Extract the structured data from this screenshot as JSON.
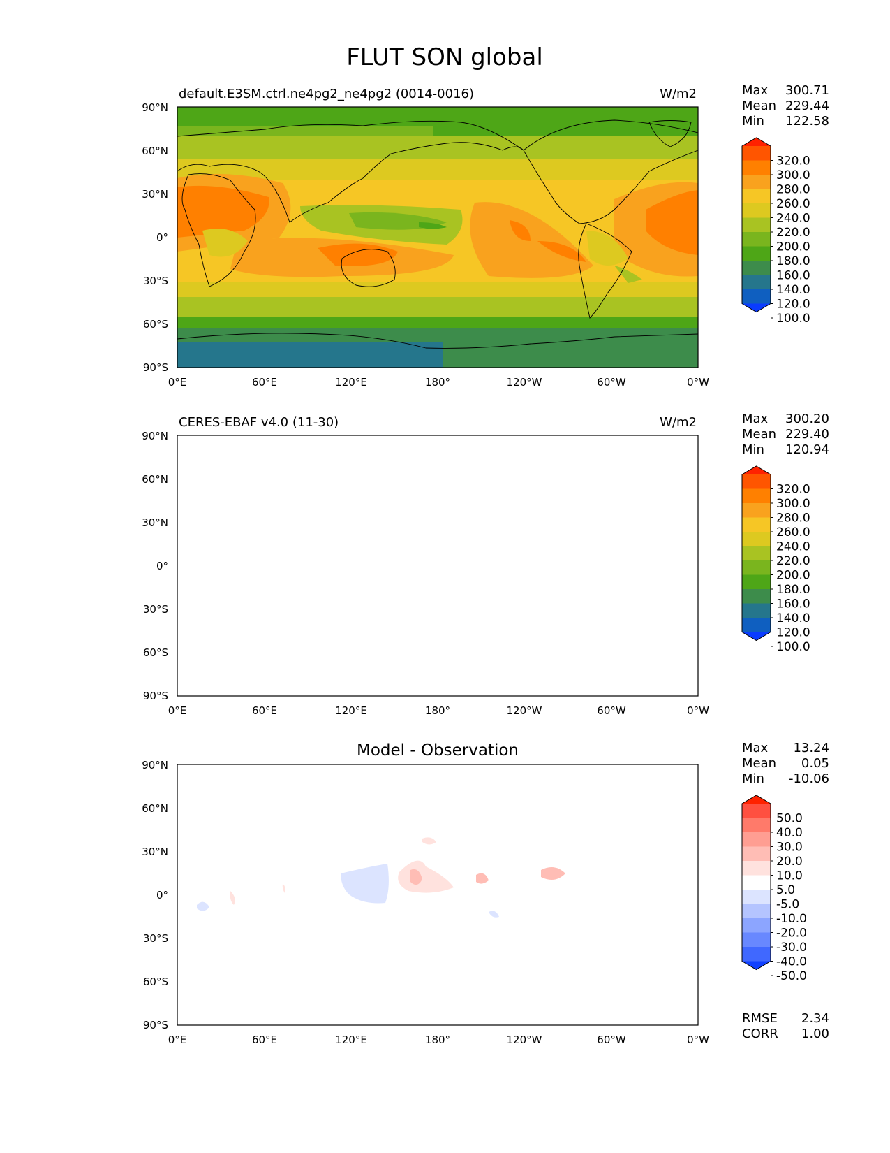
{
  "title": "FLUT SON global",
  "x_ticks": [
    "0°E",
    "60°E",
    "120°E",
    "180°",
    "120°W",
    "60°W",
    "0°W"
  ],
  "y_ticks": [
    "90°N",
    "60°N",
    "30°N",
    "0°",
    "30°S",
    "60°S",
    "90°S"
  ],
  "stat_labels": {
    "max": "Max",
    "mean": "Mean",
    "min": "Min",
    "rmse": "RMSE",
    "corr": "CORR"
  },
  "panels": [
    {
      "name": "model",
      "title_left": "default.E3SM.ctrl.ne4pg2_ne4pg2 (0014-0016)",
      "title_center": "",
      "units": "W/m2",
      "stats": {
        "max": "300.71",
        "mean": "229.44",
        "min": "122.58"
      },
      "colorbar": {
        "levels": [
          "320.0",
          "300.0",
          "280.0",
          "260.0",
          "240.0",
          "220.0",
          "200.0",
          "180.0",
          "160.0",
          "140.0",
          "120.0",
          "100.0"
        ],
        "colors": [
          "#ff2200",
          "#ff5500",
          "#ff8000",
          "#f9a21e",
          "#f6c625",
          "#ddc920",
          "#a9c322",
          "#7ab51e",
          "#4ea617",
          "#3d8c4b",
          "#25768c",
          "#0f5fc0",
          "#0a3cff"
        ]
      }
    },
    {
      "name": "observation",
      "title_left": "CERES-EBAF v4.0 (11-30)",
      "title_center": "",
      "units": "W/m2",
      "stats": {
        "max": "300.20",
        "mean": "229.40",
        "min": "120.94"
      },
      "colorbar": {
        "levels": [
          "320.0",
          "300.0",
          "280.0",
          "260.0",
          "240.0",
          "220.0",
          "200.0",
          "180.0",
          "160.0",
          "140.0",
          "120.0",
          "100.0"
        ],
        "colors": [
          "#ff2200",
          "#ff5500",
          "#ff8000",
          "#f9a21e",
          "#f6c625",
          "#ddc920",
          "#a9c322",
          "#7ab51e",
          "#4ea617",
          "#3d8c4b",
          "#25768c",
          "#0f5fc0",
          "#0a3cff"
        ]
      }
    },
    {
      "name": "difference",
      "title_left": "",
      "title_center": "Model - Observation",
      "units": "",
      "stats": {
        "max": "13.24",
        "mean": "0.05",
        "min": "-10.06"
      },
      "extra_stats": {
        "rmse": "2.34",
        "corr": "1.00"
      },
      "colorbar": {
        "levels": [
          "50.0",
          "40.0",
          "30.0",
          "20.0",
          "10.0",
          "5.0",
          "-5.0",
          "-10.0",
          "-20.0",
          "-30.0",
          "-40.0",
          "-50.0"
        ],
        "colors": [
          "#ff2200",
          "#ff5040",
          "#ff7a6a",
          "#ff9e92",
          "#ffbdb5",
          "#ffe2de",
          "#ffffff",
          "#dce4ff",
          "#b4c4ff",
          "#8ca5ff",
          "#6888ff",
          "#4068ff",
          "#1040ff"
        ]
      }
    }
  ]
}
